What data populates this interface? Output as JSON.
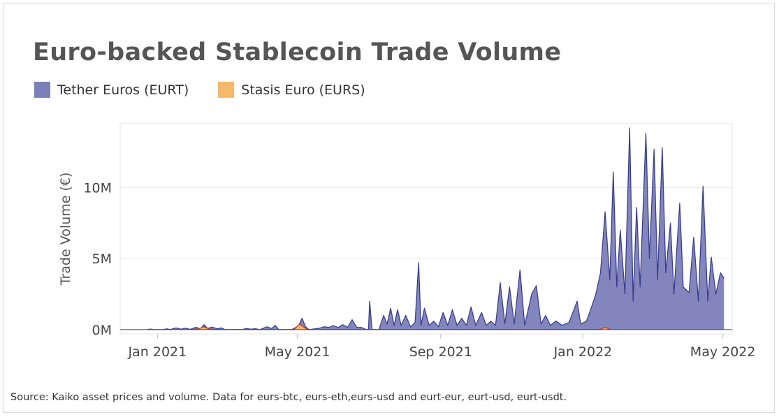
{
  "chart_data": {
    "type": "area",
    "title": "Euro-backed Stablecoin Trade Volume",
    "ylabel": "Trade Volume (€)",
    "xlabel": "",
    "source": "Source: Kaiko asset prices and volume. Data for eurs-btc, eurs-eth,eurs-usd and eurt-eur, eurt-usd, eurt-usdt.",
    "x_range": [
      "2020-11-30",
      "2022-05-09"
    ],
    "ylim": [
      -300000,
      14500000
    ],
    "grid": true,
    "legend_position": "top-left",
    "x_ticks": [
      {
        "label": "Jan 2021",
        "date": "2021-01-01"
      },
      {
        "label": "May 2021",
        "date": "2021-05-01"
      },
      {
        "label": "Sep 2021",
        "date": "2021-09-01"
      },
      {
        "label": "Jan 2022",
        "date": "2022-01-01"
      },
      {
        "label": "May 2022",
        "date": "2022-05-01"
      }
    ],
    "y_ticks": [
      {
        "label": "0M",
        "value": 0
      },
      {
        "label": "5M",
        "value": 5000000
      },
      {
        "label": "10M",
        "value": 10000000
      }
    ],
    "series": [
      {
        "name": "Tether Euros (EURT)",
        "color": "#7b80b8",
        "line_color": "#3a3f8f",
        "points": [
          [
            "2020-12-23",
            0
          ],
          [
            "2020-12-26",
            40000
          ],
          [
            "2020-12-29",
            0
          ],
          [
            "2021-01-06",
            0
          ],
          [
            "2021-01-09",
            60000
          ],
          [
            "2021-01-12",
            10000
          ],
          [
            "2021-01-17",
            120000
          ],
          [
            "2021-01-21",
            30000
          ],
          [
            "2021-01-25",
            100000
          ],
          [
            "2021-01-29",
            20000
          ],
          [
            "2021-02-03",
            160000
          ],
          [
            "2021-02-07",
            60000
          ],
          [
            "2021-02-10",
            350000
          ],
          [
            "2021-02-13",
            80000
          ],
          [
            "2021-02-17",
            180000
          ],
          [
            "2021-02-21",
            60000
          ],
          [
            "2021-02-25",
            120000
          ],
          [
            "2021-02-28",
            0
          ],
          [
            "2021-03-15",
            0
          ],
          [
            "2021-03-18",
            80000
          ],
          [
            "2021-03-22",
            30000
          ],
          [
            "2021-03-26",
            60000
          ],
          [
            "2021-03-30",
            0
          ],
          [
            "2021-04-05",
            200000
          ],
          [
            "2021-04-09",
            80000
          ],
          [
            "2021-04-12",
            300000
          ],
          [
            "2021-04-15",
            0
          ],
          [
            "2021-04-26",
            0
          ],
          [
            "2021-05-02",
            250000
          ],
          [
            "2021-05-05",
            800000
          ],
          [
            "2021-05-08",
            200000
          ],
          [
            "2021-05-11",
            0
          ],
          [
            "2021-05-20",
            100000
          ],
          [
            "2021-05-24",
            200000
          ],
          [
            "2021-05-28",
            150000
          ],
          [
            "2021-06-01",
            280000
          ],
          [
            "2021-06-05",
            150000
          ],
          [
            "2021-06-09",
            350000
          ],
          [
            "2021-06-13",
            150000
          ],
          [
            "2021-06-17",
            700000
          ],
          [
            "2021-06-21",
            150000
          ],
          [
            "2021-06-25",
            150000
          ],
          [
            "2021-06-29",
            0
          ],
          [
            "2021-07-01",
            0
          ],
          [
            "2021-07-02",
            2000000
          ],
          [
            "2021-07-04",
            0
          ],
          [
            "2021-07-10",
            0
          ],
          [
            "2021-07-14",
            1000000
          ],
          [
            "2021-07-17",
            400000
          ],
          [
            "2021-07-20",
            1500000
          ],
          [
            "2021-07-23",
            300000
          ],
          [
            "2021-07-26",
            1400000
          ],
          [
            "2021-07-29",
            300000
          ],
          [
            "2021-08-02",
            1000000
          ],
          [
            "2021-08-06",
            200000
          ],
          [
            "2021-08-10",
            500000
          ],
          [
            "2021-08-13",
            4700000
          ],
          [
            "2021-08-15",
            300000
          ],
          [
            "2021-08-18",
            1500000
          ],
          [
            "2021-08-22",
            300000
          ],
          [
            "2021-08-26",
            600000
          ],
          [
            "2021-08-30",
            200000
          ],
          [
            "2021-09-03",
            1200000
          ],
          [
            "2021-09-07",
            300000
          ],
          [
            "2021-09-11",
            1400000
          ],
          [
            "2021-09-15",
            300000
          ],
          [
            "2021-09-19",
            800000
          ],
          [
            "2021-09-23",
            300000
          ],
          [
            "2021-09-27",
            1600000
          ],
          [
            "2021-10-01",
            300000
          ],
          [
            "2021-10-06",
            1200000
          ],
          [
            "2021-10-10",
            300000
          ],
          [
            "2021-10-14",
            600000
          ],
          [
            "2021-10-18",
            300000
          ],
          [
            "2021-10-22",
            3300000
          ],
          [
            "2021-10-26",
            400000
          ],
          [
            "2021-10-30",
            3000000
          ],
          [
            "2021-11-03",
            400000
          ],
          [
            "2021-11-08",
            4200000
          ],
          [
            "2021-11-12",
            300000
          ],
          [
            "2021-11-18",
            2500000
          ],
          [
            "2021-11-22",
            3100000
          ],
          [
            "2021-11-26",
            400000
          ],
          [
            "2021-11-30",
            1000000
          ],
          [
            "2021-12-04",
            300000
          ],
          [
            "2021-12-09",
            600000
          ],
          [
            "2021-12-14",
            300000
          ],
          [
            "2021-12-20",
            500000
          ],
          [
            "2021-12-27",
            2000000
          ],
          [
            "2021-12-30",
            400000
          ],
          [
            "2022-01-04",
            600000
          ],
          [
            "2022-01-08",
            1500000
          ],
          [
            "2022-01-12",
            2500000
          ],
          [
            "2022-01-16",
            4000000
          ],
          [
            "2022-01-20",
            8300000
          ],
          [
            "2022-01-24",
            3500000
          ],
          [
            "2022-01-27",
            11100000
          ],
          [
            "2022-01-30",
            3000000
          ],
          [
            "2022-02-02",
            7000000
          ],
          [
            "2022-02-06",
            2500000
          ],
          [
            "2022-02-10",
            14200000
          ],
          [
            "2022-02-13",
            2000000
          ],
          [
            "2022-02-16",
            8600000
          ],
          [
            "2022-02-19",
            3000000
          ],
          [
            "2022-02-24",
            13800000
          ],
          [
            "2022-02-27",
            5000000
          ],
          [
            "2022-03-03",
            12700000
          ],
          [
            "2022-03-06",
            3500000
          ],
          [
            "2022-03-10",
            12800000
          ],
          [
            "2022-03-13",
            4000000
          ],
          [
            "2022-03-17",
            7500000
          ],
          [
            "2022-03-20",
            2500000
          ],
          [
            "2022-03-25",
            8900000
          ],
          [
            "2022-03-28",
            3000000
          ],
          [
            "2022-04-02",
            2600000
          ],
          [
            "2022-04-06",
            6500000
          ],
          [
            "2022-04-10",
            2000000
          ],
          [
            "2022-04-14",
            10100000
          ],
          [
            "2022-04-18",
            2000000
          ],
          [
            "2022-04-21",
            5100000
          ],
          [
            "2022-04-25",
            2500000
          ],
          [
            "2022-04-29",
            4000000
          ],
          [
            "2022-05-02",
            3600000
          ]
        ]
      },
      {
        "name": "Stasis Euro (EURS)",
        "color": "#f6b96b",
        "line_color": "#c0392b",
        "points": [
          [
            "2021-01-29",
            0
          ],
          [
            "2021-02-05",
            50000
          ],
          [
            "2021-02-10",
            200000
          ],
          [
            "2021-02-14",
            50000
          ],
          [
            "2021-02-20",
            0
          ],
          [
            "2021-04-28",
            0
          ],
          [
            "2021-05-03",
            400000
          ],
          [
            "2021-05-06",
            200000
          ],
          [
            "2021-05-10",
            0
          ],
          [
            "2022-01-15",
            0
          ],
          [
            "2022-01-20",
            150000
          ],
          [
            "2022-01-25",
            0
          ]
        ]
      }
    ]
  }
}
